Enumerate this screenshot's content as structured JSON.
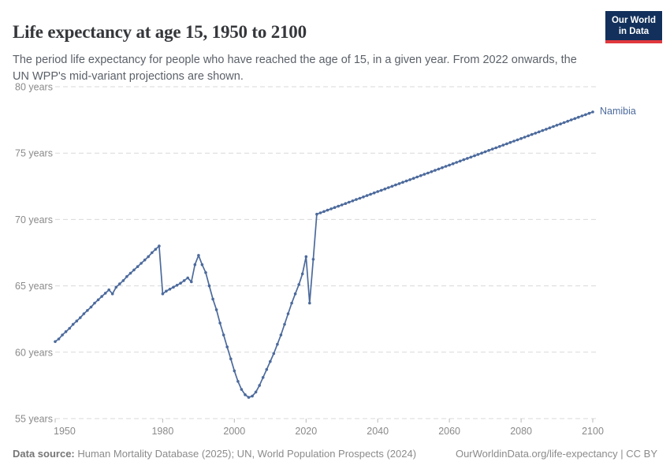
{
  "header": {
    "title": "Life expectancy at age 15, 1950 to 2100",
    "subtitle": "The period life expectancy for people who have reached the age of 15, in a given year. From 2022 onwards, the UN WPP's mid-variant projections are shown.",
    "logo": {
      "line1": "Our World",
      "line2": "in Data",
      "bg_color": "#12305b",
      "accent_color": "#e0393f"
    }
  },
  "chart_data": {
    "type": "line",
    "title": "Life expectancy at age 15, 1950 to 2100",
    "xlabel": "",
    "ylabel": "",
    "xlim": [
      1950,
      2100
    ],
    "ylim": [
      55,
      80
    ],
    "x_ticks": [
      1950,
      1980,
      2000,
      2020,
      2040,
      2060,
      2080,
      2100
    ],
    "y_ticks": [
      55,
      60,
      65,
      70,
      75,
      80
    ],
    "y_tick_suffix": " years",
    "grid": "horizontal-dashed",
    "legend": "end-of-line-label",
    "entity_label": "Namibia",
    "line_color": "#4c6a9c",
    "grid_color": "#d9d9d9",
    "tick_color": "#b9b9b9",
    "axis_text_color": "#8a8a8a",
    "series": [
      {
        "name": "Namibia",
        "color": "#4c6a9c",
        "points": [
          [
            1950,
            60.8
          ],
          [
            1951,
            61.0
          ],
          [
            1952,
            61.3
          ],
          [
            1953,
            61.55
          ],
          [
            1954,
            61.8
          ],
          [
            1955,
            62.1
          ],
          [
            1956,
            62.35
          ],
          [
            1957,
            62.6
          ],
          [
            1958,
            62.9
          ],
          [
            1959,
            63.15
          ],
          [
            1960,
            63.4
          ],
          [
            1961,
            63.7
          ],
          [
            1962,
            63.95
          ],
          [
            1963,
            64.2
          ],
          [
            1964,
            64.45
          ],
          [
            1965,
            64.7
          ],
          [
            1966,
            64.4
          ],
          [
            1967,
            64.9
          ],
          [
            1968,
            65.15
          ],
          [
            1969,
            65.4
          ],
          [
            1970,
            65.7
          ],
          [
            1971,
            65.95
          ],
          [
            1972,
            66.2
          ],
          [
            1973,
            66.45
          ],
          [
            1974,
            66.7
          ],
          [
            1975,
            66.95
          ],
          [
            1976,
            67.2
          ],
          [
            1977,
            67.5
          ],
          [
            1978,
            67.75
          ],
          [
            1979,
            68.0
          ],
          [
            1980,
            64.4
          ],
          [
            1981,
            64.6
          ],
          [
            1982,
            64.75
          ],
          [
            1983,
            64.9
          ],
          [
            1984,
            65.05
          ],
          [
            1985,
            65.2
          ],
          [
            1986,
            65.4
          ],
          [
            1987,
            65.6
          ],
          [
            1988,
            65.3
          ],
          [
            1989,
            66.6
          ],
          [
            1990,
            67.3
          ],
          [
            1991,
            66.6
          ],
          [
            1992,
            66.0
          ],
          [
            1993,
            65.0
          ],
          [
            1994,
            64.0
          ],
          [
            1995,
            63.2
          ],
          [
            1996,
            62.2
          ],
          [
            1997,
            61.3
          ],
          [
            1998,
            60.4
          ],
          [
            1999,
            59.5
          ],
          [
            2000,
            58.6
          ],
          [
            2001,
            57.8
          ],
          [
            2002,
            57.2
          ],
          [
            2003,
            56.8
          ],
          [
            2004,
            56.6
          ],
          [
            2005,
            56.7
          ],
          [
            2006,
            57.0
          ],
          [
            2007,
            57.5
          ],
          [
            2008,
            58.1
          ],
          [
            2009,
            58.7
          ],
          [
            2010,
            59.3
          ],
          [
            2011,
            59.9
          ],
          [
            2012,
            60.6
          ],
          [
            2013,
            61.3
          ],
          [
            2014,
            62.1
          ],
          [
            2015,
            62.9
          ],
          [
            2016,
            63.7
          ],
          [
            2017,
            64.4
          ],
          [
            2018,
            65.1
          ],
          [
            2019,
            65.9
          ],
          [
            2020,
            67.2
          ],
          [
            2021,
            63.7
          ],
          [
            2022,
            67.0
          ],
          [
            2023,
            70.4
          ],
          [
            2024,
            70.5
          ],
          [
            2025,
            70.6
          ],
          [
            2026,
            70.7
          ],
          [
            2027,
            70.8
          ],
          [
            2028,
            70.9
          ],
          [
            2029,
            71.0
          ],
          [
            2030,
            71.1
          ],
          [
            2031,
            71.2
          ],
          [
            2032,
            71.3
          ],
          [
            2033,
            71.4
          ],
          [
            2034,
            71.5
          ],
          [
            2035,
            71.6
          ],
          [
            2036,
            71.7
          ],
          [
            2037,
            71.8
          ],
          [
            2038,
            71.9
          ],
          [
            2039,
            72.0
          ],
          [
            2040,
            72.1
          ],
          [
            2041,
            72.2
          ],
          [
            2042,
            72.3
          ],
          [
            2043,
            72.4
          ],
          [
            2044,
            72.5
          ],
          [
            2045,
            72.6
          ],
          [
            2046,
            72.7
          ],
          [
            2047,
            72.8
          ],
          [
            2048,
            72.9
          ],
          [
            2049,
            73.0
          ],
          [
            2050,
            73.1
          ],
          [
            2051,
            73.2
          ],
          [
            2052,
            73.3
          ],
          [
            2053,
            73.4
          ],
          [
            2054,
            73.5
          ],
          [
            2055,
            73.6
          ],
          [
            2056,
            73.7
          ],
          [
            2057,
            73.8
          ],
          [
            2058,
            73.9
          ],
          [
            2059,
            74.0
          ],
          [
            2060,
            74.1
          ],
          [
            2061,
            74.2
          ],
          [
            2062,
            74.3
          ],
          [
            2063,
            74.4
          ],
          [
            2064,
            74.5
          ],
          [
            2065,
            74.6
          ],
          [
            2066,
            74.7
          ],
          [
            2067,
            74.8
          ],
          [
            2068,
            74.9
          ],
          [
            2069,
            75.0
          ],
          [
            2070,
            75.1
          ],
          [
            2071,
            75.2
          ],
          [
            2072,
            75.3
          ],
          [
            2073,
            75.4
          ],
          [
            2074,
            75.5
          ],
          [
            2075,
            75.6
          ],
          [
            2076,
            75.7
          ],
          [
            2077,
            75.8
          ],
          [
            2078,
            75.9
          ],
          [
            2079,
            76.0
          ],
          [
            2080,
            76.1
          ],
          [
            2081,
            76.2
          ],
          [
            2082,
            76.3
          ],
          [
            2083,
            76.4
          ],
          [
            2084,
            76.5
          ],
          [
            2085,
            76.6
          ],
          [
            2086,
            76.7
          ],
          [
            2087,
            76.8
          ],
          [
            2088,
            76.9
          ],
          [
            2089,
            77.0
          ],
          [
            2090,
            77.1
          ],
          [
            2091,
            77.2
          ],
          [
            2092,
            77.3
          ],
          [
            2093,
            77.4
          ],
          [
            2094,
            77.5
          ],
          [
            2095,
            77.6
          ],
          [
            2096,
            77.7
          ],
          [
            2097,
            77.8
          ],
          [
            2098,
            77.9
          ],
          [
            2099,
            78.0
          ],
          [
            2100,
            78.1
          ]
        ]
      }
    ]
  },
  "footer": {
    "datasource_label": "Data source:",
    "datasource_text": " Human Mortality Database (2025); UN, World Population Prospects (2024)",
    "link_text": "OurWorldinData.org/life-expectancy",
    "separator": " | ",
    "license_text": "CC BY"
  }
}
